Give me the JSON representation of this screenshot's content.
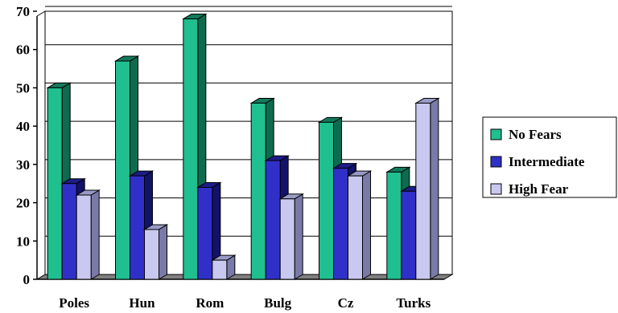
{
  "chart_data": {
    "type": "bar",
    "categories": [
      "Poles",
      "Hun",
      "Rom",
      "Bulg",
      "Cz",
      "Turks"
    ],
    "series": [
      {
        "name": "No Fears",
        "values": [
          50,
          57,
          68,
          46,
          41,
          28
        ]
      },
      {
        "name": "Intermediate",
        "values": [
          25,
          27,
          24,
          31,
          29,
          23
        ]
      },
      {
        "name": "High Fear",
        "values": [
          22,
          13,
          5,
          21,
          27,
          46
        ]
      }
    ],
    "y_ticks": [
      "0",
      "10",
      "20",
      "30",
      "40",
      "50",
      "60",
      "70"
    ],
    "ylim": [
      0,
      70
    ],
    "grid": true,
    "legend_position": "right",
    "colors": {
      "No Fears": {
        "front": "#1fbf8f",
        "side": "#0d6b4f",
        "top": "#137a5c"
      },
      "Intermediate": {
        "front": "#3030c8",
        "side": "#12126a",
        "top": "#1c1c8a"
      },
      "High Fear": {
        "front": "#c8c8f0",
        "side": "#7a7aa8",
        "top": "#9a9ac8"
      }
    }
  }
}
